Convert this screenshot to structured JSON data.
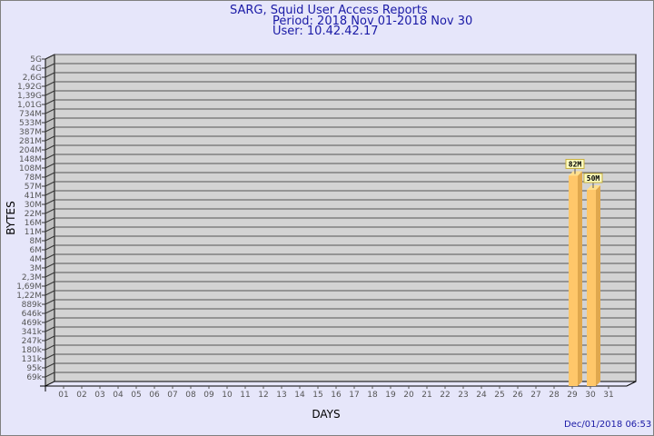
{
  "chart_data": {
    "type": "bar",
    "title": "SARG, Squid User Access Reports",
    "subtitle": [
      "Period: 2018 Nov 01-2018 Nov 30",
      "User: 10.42.42.17"
    ],
    "xlabel": "DAYS",
    "ylabel": "BYTES",
    "yscale": "log",
    "grid": true,
    "y_ticks": [
      "5G",
      "4G",
      "2,6G",
      "1,92G",
      "1,39G",
      "1,01G",
      "734M",
      "533M",
      "387M",
      "281M",
      "204M",
      "148M",
      "108M",
      "78M",
      "57M",
      "41M",
      "30M",
      "22M",
      "16M",
      "11M",
      "8M",
      "6M",
      "4M",
      "3M",
      "2,3M",
      "1,69M",
      "1,22M",
      "889k",
      "646k",
      "469k",
      "341k",
      "247k",
      "180k",
      "131k",
      "95k",
      "69k"
    ],
    "y_tick_values": [
      5000000000.0,
      4000000000.0,
      2600000000.0,
      1920000000.0,
      1390000000.0,
      1010000000.0,
      734000000.0,
      533000000.0,
      387000000.0,
      281000000.0,
      204000000.0,
      148000000.0,
      108000000.0,
      78000000.0,
      57000000.0,
      41000000.0,
      30000000.0,
      22000000.0,
      16000000.0,
      11000000.0,
      8000000.0,
      6000000.0,
      4000000.0,
      3000000.0,
      2300000.0,
      1690000.0,
      1220000.0,
      889000.0,
      646000.0,
      469000.0,
      341000.0,
      247000.0,
      180000.0,
      131000.0,
      95000.0,
      69000.0
    ],
    "categories": [
      "01",
      "02",
      "03",
      "04",
      "05",
      "06",
      "07",
      "08",
      "09",
      "10",
      "11",
      "12",
      "13",
      "14",
      "15",
      "16",
      "17",
      "18",
      "19",
      "20",
      "21",
      "22",
      "23",
      "24",
      "25",
      "26",
      "27",
      "28",
      "29",
      "30",
      "31"
    ],
    "bars": [
      {
        "day": "29",
        "value": 82000000,
        "label": "82M"
      },
      {
        "day": "30",
        "value": 50000000,
        "label": "50M"
      }
    ],
    "colors": {
      "bar_front": "#ffc76a",
      "bar_side": "#e0a84e",
      "bar_top": "#ffe08e",
      "wall": "#d3d3d3",
      "title": "#1a1aa6"
    }
  },
  "footer": {
    "timestamp": "Dec/01/2018 06:53"
  }
}
